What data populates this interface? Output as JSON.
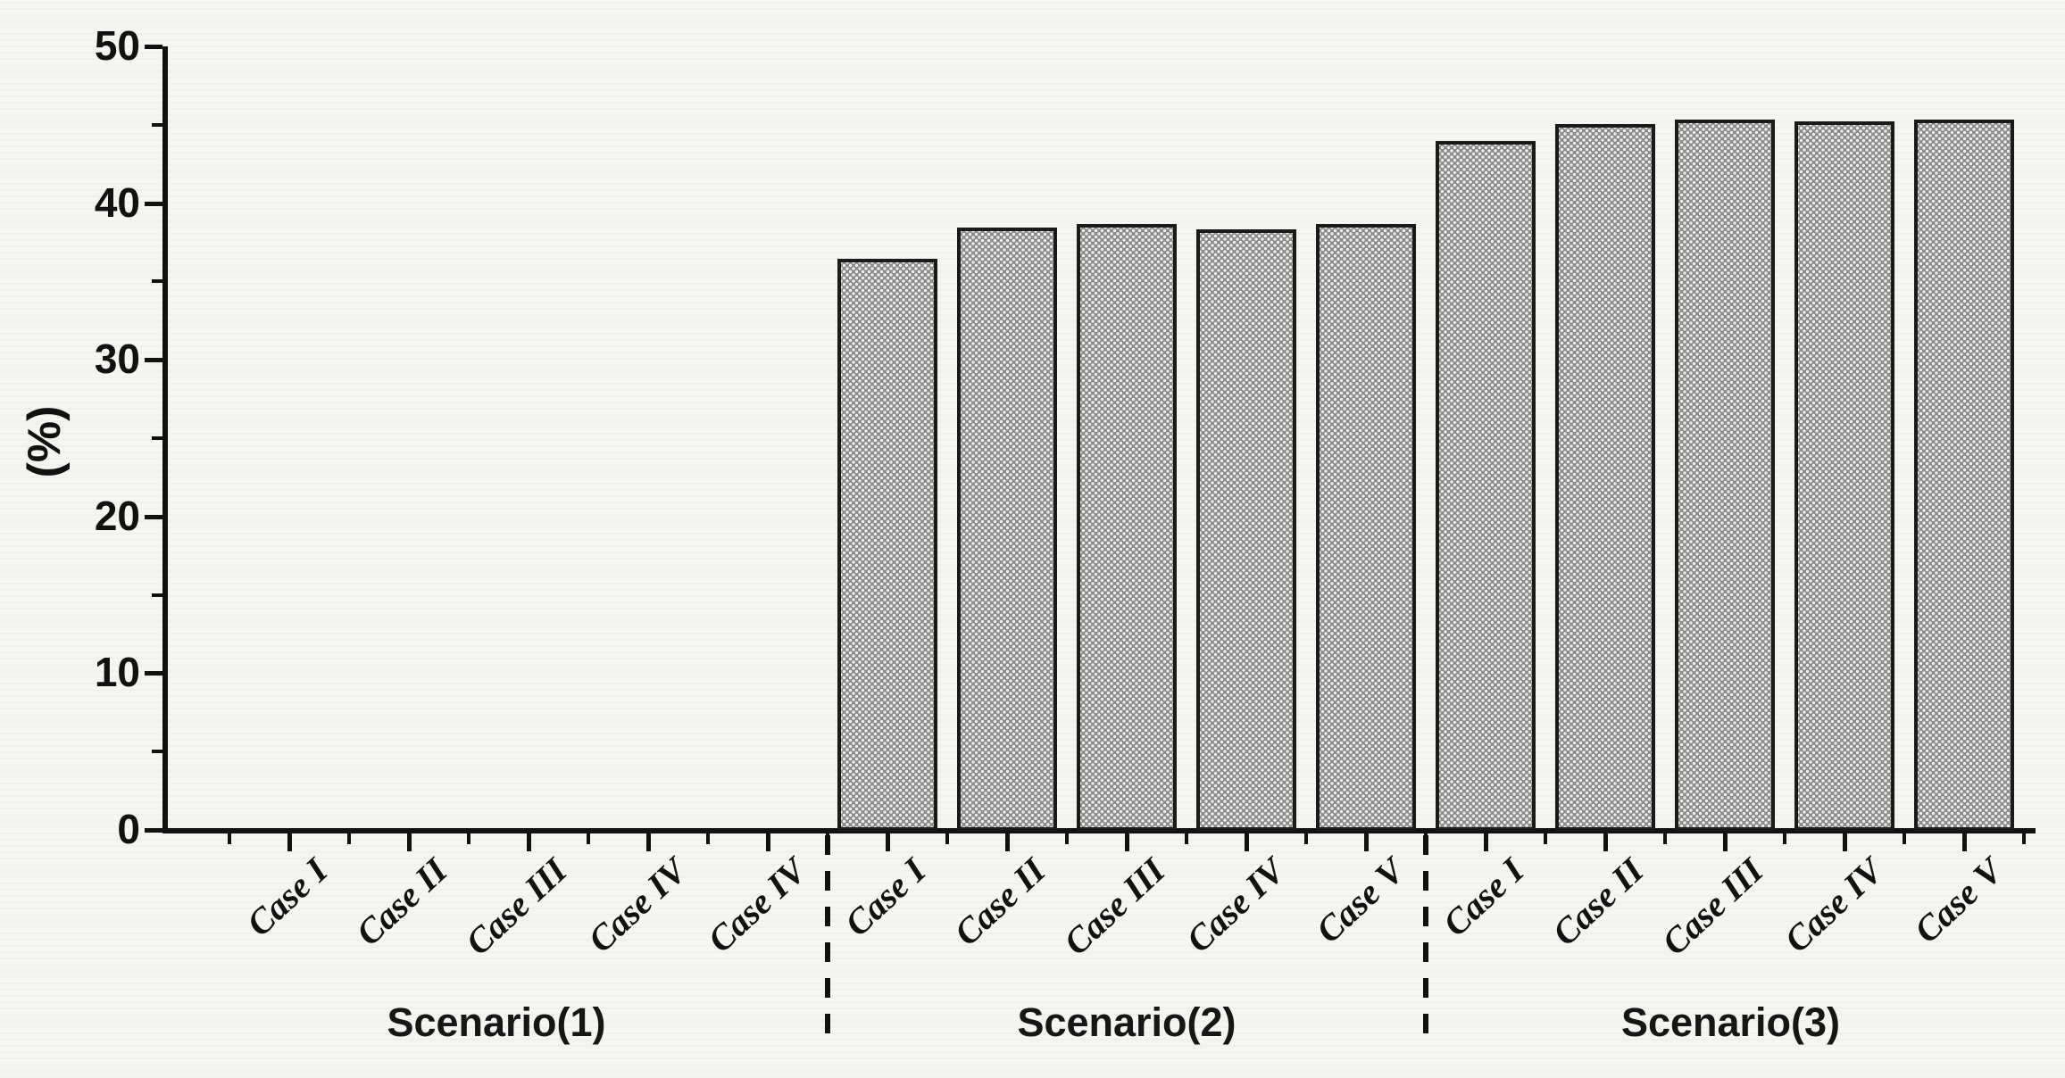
{
  "figure": {
    "background": "#f5f5f2",
    "ink": "#111111",
    "bar_fill": "#8a8a8a",
    "bar_dot": "#efefef",
    "bar_border": "#1a1a1a"
  },
  "chart_data": {
    "type": "bar",
    "title": "",
    "xlabel": "",
    "ylabel": "(%)",
    "ylim": [
      0,
      50
    ],
    "yticks_major": [
      0,
      10,
      20,
      30,
      40,
      50
    ],
    "yticks_minor": [
      5,
      15,
      25,
      35,
      45
    ],
    "grid": false,
    "legend": false,
    "bar_pattern": "dense gray crosshatch mesh with black outline",
    "separator_style": "black dashed vertical lines between scenario groups below axis",
    "groups": [
      {
        "label": "Scenario(1)",
        "cases": [
          "Case I",
          "Case II",
          "Case III",
          "Case IV",
          "Case IV"
        ],
        "values": [
          0,
          0,
          0,
          0,
          0
        ]
      },
      {
        "label": "Scenario(2)",
        "cases": [
          "Case I",
          "Case II",
          "Case III",
          "Case IV",
          "Case V"
        ],
        "values": [
          36.5,
          38.5,
          38.7,
          38.4,
          38.7
        ]
      },
      {
        "label": "Scenario(3)",
        "cases": [
          "Case I",
          "Case II",
          "Case III",
          "Case IV",
          "Case V"
        ],
        "values": [
          44.0,
          45.1,
          45.4,
          45.3,
          45.4
        ]
      }
    ]
  }
}
